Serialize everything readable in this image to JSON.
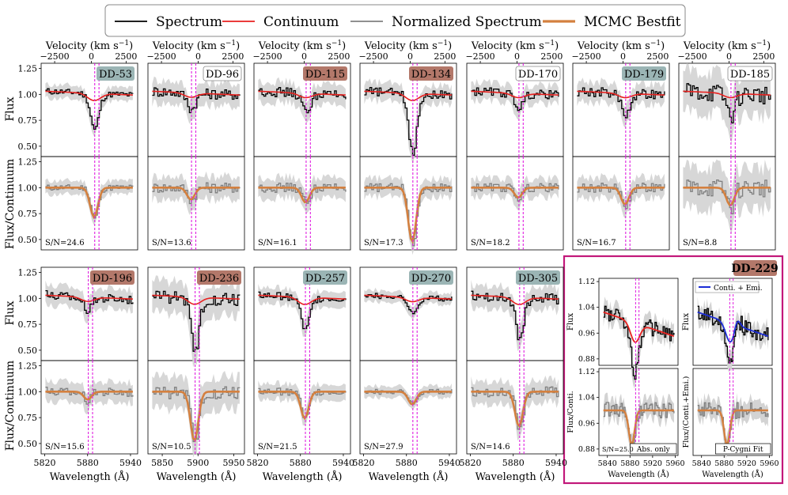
{
  "legend": {
    "items": [
      {
        "label": "Spectrum",
        "color": "#000000",
        "width": 1.6
      },
      {
        "label": "Continuum",
        "color": "#e8211f",
        "width": 1.6
      },
      {
        "label": "Normalized Spectrum",
        "color": "#808080",
        "width": 1.6
      },
      {
        "label": "MCMC Bestfit",
        "color": "#d4803f",
        "width": 3
      }
    ]
  },
  "labels": {
    "velocity_top": "Velocity (km s",
    "velocity_sup": "−1",
    "velocity_close": ")",
    "wavelength": "Wavelength (Å)",
    "flux": "Flux",
    "flux_cont": "Flux/Continuum",
    "flux_cont_short": "Flux/Conti.",
    "flux_cont_emi": "Flux/(Conti.+Emi.)",
    "inset_title": "DD-229",
    "inset_legend": "Conti. + Emi.",
    "inset_box_left": "Abs. only",
    "inset_box_right": "P-Cygni Fit"
  },
  "colors": {
    "spectrum": "#000000",
    "continuum": "#e8211f",
    "normalized": "#808080",
    "bestfit": "#d4803f",
    "band": "#d3d3d3",
    "marker": "#e01ee0",
    "frame": "#c2187a",
    "emission": "#1a2bd6",
    "tag_teal": "#9bb5b5",
    "tag_brown": "#b3786a",
    "tag_white": "#ffffff"
  },
  "chart_data": {
    "type": "line",
    "axes": {
      "velocity_ticks": [
        "−2500",
        "0",
        "2500"
      ],
      "flux_ticks": [
        "1.25",
        "1.00",
        "0.75",
        "0.50"
      ],
      "norm_ticks": [
        "1.25",
        "1.00",
        "0.75",
        "0.50"
      ],
      "wave_ticks_a": [
        "5820",
        "5880",
        "5940"
      ],
      "wave_ticks_b": [
        "5850",
        "5900",
        "5950"
      ],
      "inset_wave_ticks": [
        "5840",
        "5880",
        "5920",
        "5960"
      ],
      "inset_flux_ticks": [
        "1.12",
        "1.04",
        "0.96",
        "0.88"
      ],
      "inset_norm_ticks": [
        "1.12",
        "1.04",
        "0.96",
        "0.88"
      ],
      "flux_ylim": [
        0.4,
        1.3
      ],
      "na_d_lines_A": [
        5889.95,
        5895.92
      ]
    },
    "panels": [
      {
        "name": "DD-53",
        "sn": "S/N=24.6",
        "tag": "tag_teal",
        "depth": 0.3,
        "noise": 0.03,
        "center": 5889,
        "xmin": 5815,
        "xmax": 5950
      },
      {
        "name": "DD-96",
        "sn": "S/N=13.6",
        "tag": "tag_white",
        "depth": 0.12,
        "noise": 0.05,
        "center": 5890,
        "xmin": 5830,
        "xmax": 5965
      },
      {
        "name": "DD-115",
        "sn": "S/N=16.1",
        "tag": "tag_brown",
        "depth": 0.15,
        "noise": 0.045,
        "center": 5887,
        "xmin": 5815,
        "xmax": 5950
      },
      {
        "name": "DD-134",
        "sn": "S/N=17.3",
        "tag": "tag_brown",
        "depth": 0.55,
        "noise": 0.04,
        "center": 5888,
        "xmin": 5815,
        "xmax": 5950
      },
      {
        "name": "DD-170",
        "sn": "S/N=18.2",
        "tag": "tag_white",
        "depth": 0.1,
        "noise": 0.04,
        "center": 5887,
        "xmin": 5815,
        "xmax": 5950
      },
      {
        "name": "DD-179",
        "sn": "S/N=16.7",
        "tag": "tag_teal",
        "depth": 0.17,
        "noise": 0.045,
        "center": 5888,
        "xmin": 5815,
        "xmax": 5950
      },
      {
        "name": "DD-185",
        "sn": "S/N=8.8",
        "tag": "tag_white",
        "depth": 0.18,
        "noise": 0.09,
        "center": 5887,
        "xmin": 5815,
        "xmax": 5950
      },
      {
        "name": "DD-196",
        "sn": "S/N=15.6",
        "tag": "tag_brown",
        "depth": 0.08,
        "noise": 0.045,
        "center": 5880,
        "xmin": 5815,
        "xmax": 5950
      },
      {
        "name": "DD-236",
        "sn": "S/N=10.5",
        "tag": "tag_brown",
        "depth": 0.5,
        "noise": 0.07,
        "center": 5895,
        "xmin": 5830,
        "xmax": 5965
      },
      {
        "name": "DD-257",
        "sn": "S/N=21.5",
        "tag": "tag_teal",
        "depth": 0.27,
        "noise": 0.035,
        "center": 5886,
        "xmin": 5815,
        "xmax": 5950
      },
      {
        "name": "DD-270",
        "sn": "S/N=27.9",
        "tag": "tag_teal",
        "depth": 0.13,
        "noise": 0.025,
        "center": 5888,
        "xmin": 5815,
        "xmax": 5950
      },
      {
        "name": "DD-305",
        "sn": "S/N=14.6",
        "tag": "tag_teal",
        "depth": 0.35,
        "noise": 0.05,
        "center": 5888,
        "xmin": 5815,
        "xmax": 5950
      }
    ],
    "inset": [
      {
        "name": "DD-229 Abs. only",
        "sn": "S/N=25.0",
        "depth": 0.12,
        "noise": 0.025,
        "center": 5883,
        "xmin": 5825,
        "xmax": 5965
      },
      {
        "name": "DD-229 P-Cygni Fit",
        "sn": "",
        "depth": 0.12,
        "noise": 0.025,
        "center": 5885,
        "xmin": 5825,
        "xmax": 5965
      }
    ]
  }
}
